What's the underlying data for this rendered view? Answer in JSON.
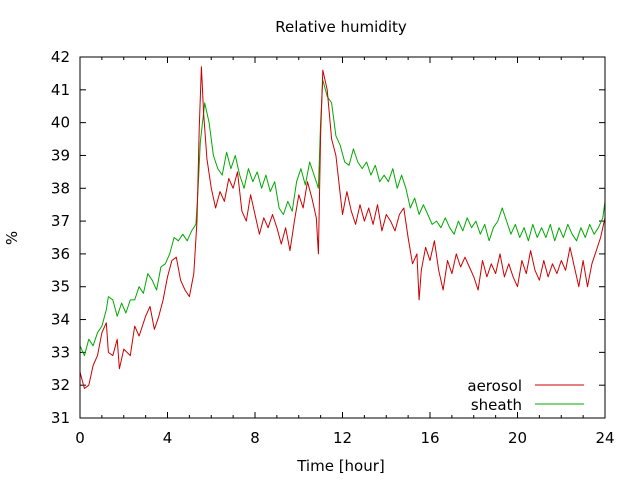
{
  "chart_data": {
    "type": "line",
    "title": "Relative humidity",
    "xlabel": "Time [hour]",
    "ylabel": "%",
    "xlim": [
      0,
      24
    ],
    "ylim": [
      31,
      42
    ],
    "xticks": [
      0,
      4,
      8,
      12,
      16,
      20,
      24
    ],
    "yticks": [
      31,
      32,
      33,
      34,
      35,
      36,
      37,
      38,
      39,
      40,
      41,
      42
    ],
    "grid": false,
    "legend_position": "bottom-right",
    "series": [
      {
        "name": "aerosol",
        "color": "#cc0000",
        "points": [
          [
            0.0,
            32.4
          ],
          [
            0.2,
            31.9
          ],
          [
            0.4,
            32.0
          ],
          [
            0.6,
            32.6
          ],
          [
            0.8,
            32.9
          ],
          [
            1.0,
            33.6
          ],
          [
            1.2,
            33.9
          ],
          [
            1.3,
            33.0
          ],
          [
            1.5,
            32.9
          ],
          [
            1.7,
            33.4
          ],
          [
            1.8,
            32.5
          ],
          [
            2.0,
            33.1
          ],
          [
            2.3,
            32.9
          ],
          [
            2.5,
            33.8
          ],
          [
            2.7,
            33.5
          ],
          [
            3.0,
            34.1
          ],
          [
            3.2,
            34.4
          ],
          [
            3.4,
            33.7
          ],
          [
            3.6,
            34.1
          ],
          [
            3.8,
            34.6
          ],
          [
            4.0,
            35.3
          ],
          [
            4.2,
            35.8
          ],
          [
            4.4,
            35.9
          ],
          [
            4.6,
            35.2
          ],
          [
            4.8,
            34.9
          ],
          [
            5.0,
            34.7
          ],
          [
            5.2,
            35.4
          ],
          [
            5.35,
            37.0
          ],
          [
            5.45,
            39.8
          ],
          [
            5.55,
            41.7
          ],
          [
            5.65,
            40.3
          ],
          [
            5.8,
            38.9
          ],
          [
            6.0,
            38.0
          ],
          [
            6.2,
            37.4
          ],
          [
            6.4,
            37.9
          ],
          [
            6.6,
            37.6
          ],
          [
            6.8,
            38.3
          ],
          [
            7.0,
            38.0
          ],
          [
            7.2,
            38.5
          ],
          [
            7.4,
            37.3
          ],
          [
            7.6,
            37.0
          ],
          [
            7.8,
            37.8
          ],
          [
            8.0,
            37.2
          ],
          [
            8.2,
            36.6
          ],
          [
            8.4,
            37.1
          ],
          [
            8.6,
            36.8
          ],
          [
            8.8,
            37.2
          ],
          [
            9.0,
            36.8
          ],
          [
            9.2,
            36.3
          ],
          [
            9.4,
            36.8
          ],
          [
            9.6,
            36.1
          ],
          [
            9.8,
            37.0
          ],
          [
            10.0,
            37.8
          ],
          [
            10.2,
            37.4
          ],
          [
            10.4,
            38.2
          ],
          [
            10.6,
            37.7
          ],
          [
            10.8,
            37.1
          ],
          [
            10.9,
            36.0
          ],
          [
            11.0,
            39.6
          ],
          [
            11.1,
            41.6
          ],
          [
            11.3,
            41.0
          ],
          [
            11.5,
            39.5
          ],
          [
            11.7,
            39.0
          ],
          [
            11.9,
            37.8
          ],
          [
            12.0,
            37.2
          ],
          [
            12.2,
            37.9
          ],
          [
            12.4,
            37.3
          ],
          [
            12.6,
            36.9
          ],
          [
            12.8,
            37.5
          ],
          [
            13.0,
            37.0
          ],
          [
            13.2,
            37.4
          ],
          [
            13.4,
            36.9
          ],
          [
            13.6,
            37.5
          ],
          [
            13.8,
            36.7
          ],
          [
            14.0,
            37.2
          ],
          [
            14.2,
            37.0
          ],
          [
            14.4,
            36.7
          ],
          [
            14.6,
            37.2
          ],
          [
            14.8,
            37.4
          ],
          [
            15.0,
            36.5
          ],
          [
            15.2,
            35.7
          ],
          [
            15.4,
            36.0
          ],
          [
            15.5,
            34.6
          ],
          [
            15.6,
            35.5
          ],
          [
            15.8,
            36.2
          ],
          [
            16.0,
            35.8
          ],
          [
            16.2,
            36.4
          ],
          [
            16.4,
            35.5
          ],
          [
            16.6,
            34.9
          ],
          [
            16.8,
            35.8
          ],
          [
            17.0,
            35.4
          ],
          [
            17.2,
            36.0
          ],
          [
            17.4,
            35.6
          ],
          [
            17.6,
            35.9
          ],
          [
            17.8,
            35.6
          ],
          [
            18.0,
            35.3
          ],
          [
            18.2,
            34.9
          ],
          [
            18.4,
            35.8
          ],
          [
            18.6,
            35.3
          ],
          [
            18.8,
            35.7
          ],
          [
            19.0,
            35.4
          ],
          [
            19.2,
            36.0
          ],
          [
            19.4,
            35.3
          ],
          [
            19.6,
            35.7
          ],
          [
            19.8,
            35.3
          ],
          [
            20.0,
            35.0
          ],
          [
            20.2,
            35.8
          ],
          [
            20.4,
            35.4
          ],
          [
            20.6,
            36.1
          ],
          [
            20.8,
            35.5
          ],
          [
            21.0,
            35.2
          ],
          [
            21.2,
            35.8
          ],
          [
            21.4,
            35.3
          ],
          [
            21.6,
            35.7
          ],
          [
            21.8,
            35.4
          ],
          [
            22.0,
            35.8
          ],
          [
            22.2,
            35.5
          ],
          [
            22.4,
            36.2
          ],
          [
            22.6,
            35.6
          ],
          [
            22.8,
            35.0
          ],
          [
            23.0,
            35.8
          ],
          [
            23.2,
            35.0
          ],
          [
            23.4,
            35.7
          ],
          [
            23.6,
            36.1
          ],
          [
            23.8,
            36.5
          ],
          [
            24.0,
            37.1
          ]
        ]
      },
      {
        "name": "sheath",
        "color": "#00aa00",
        "points": [
          [
            0.0,
            33.2
          ],
          [
            0.2,
            32.9
          ],
          [
            0.4,
            33.4
          ],
          [
            0.6,
            33.2
          ],
          [
            0.8,
            33.6
          ],
          [
            1.0,
            33.8
          ],
          [
            1.2,
            34.3
          ],
          [
            1.3,
            34.7
          ],
          [
            1.5,
            34.6
          ],
          [
            1.7,
            34.1
          ],
          [
            1.9,
            34.5
          ],
          [
            2.1,
            34.2
          ],
          [
            2.3,
            34.6
          ],
          [
            2.5,
            34.6
          ],
          [
            2.7,
            35.0
          ],
          [
            2.9,
            34.8
          ],
          [
            3.1,
            35.4
          ],
          [
            3.3,
            35.2
          ],
          [
            3.5,
            34.9
          ],
          [
            3.7,
            35.6
          ],
          [
            3.9,
            35.7
          ],
          [
            4.1,
            36.0
          ],
          [
            4.3,
            36.5
          ],
          [
            4.5,
            36.4
          ],
          [
            4.7,
            36.6
          ],
          [
            4.9,
            36.4
          ],
          [
            5.1,
            36.7
          ],
          [
            5.3,
            36.9
          ],
          [
            5.4,
            38.0
          ],
          [
            5.5,
            39.4
          ],
          [
            5.6,
            40.0
          ],
          [
            5.7,
            40.6
          ],
          [
            5.9,
            40.0
          ],
          [
            6.1,
            39.0
          ],
          [
            6.3,
            38.6
          ],
          [
            6.5,
            38.4
          ],
          [
            6.7,
            39.1
          ],
          [
            6.9,
            38.6
          ],
          [
            7.1,
            39.0
          ],
          [
            7.3,
            38.4
          ],
          [
            7.5,
            38.0
          ],
          [
            7.7,
            38.6
          ],
          [
            7.9,
            38.2
          ],
          [
            8.1,
            38.5
          ],
          [
            8.3,
            38.0
          ],
          [
            8.5,
            38.4
          ],
          [
            8.7,
            37.9
          ],
          [
            8.9,
            38.2
          ],
          [
            9.1,
            37.4
          ],
          [
            9.3,
            37.2
          ],
          [
            9.5,
            37.6
          ],
          [
            9.7,
            37.3
          ],
          [
            9.9,
            38.2
          ],
          [
            10.1,
            38.6
          ],
          [
            10.3,
            38.1
          ],
          [
            10.5,
            38.8
          ],
          [
            10.7,
            38.4
          ],
          [
            10.9,
            38.0
          ],
          [
            11.0,
            40.0
          ],
          [
            11.1,
            41.3
          ],
          [
            11.3,
            40.8
          ],
          [
            11.5,
            40.6
          ],
          [
            11.7,
            39.6
          ],
          [
            11.9,
            39.3
          ],
          [
            12.1,
            38.8
          ],
          [
            12.3,
            38.7
          ],
          [
            12.5,
            39.2
          ],
          [
            12.7,
            38.8
          ],
          [
            12.9,
            38.6
          ],
          [
            13.1,
            38.8
          ],
          [
            13.3,
            38.4
          ],
          [
            13.5,
            38.7
          ],
          [
            13.7,
            38.2
          ],
          [
            13.9,
            38.4
          ],
          [
            14.1,
            38.2
          ],
          [
            14.3,
            38.6
          ],
          [
            14.5,
            38.0
          ],
          [
            14.7,
            38.4
          ],
          [
            14.9,
            38.0
          ],
          [
            15.1,
            37.4
          ],
          [
            15.3,
            37.7
          ],
          [
            15.5,
            37.2
          ],
          [
            15.7,
            37.5
          ],
          [
            15.9,
            37.2
          ],
          [
            16.1,
            36.9
          ],
          [
            16.3,
            37.0
          ],
          [
            16.5,
            36.8
          ],
          [
            16.7,
            37.1
          ],
          [
            16.9,
            36.8
          ],
          [
            17.1,
            36.6
          ],
          [
            17.3,
            37.0
          ],
          [
            17.5,
            36.7
          ],
          [
            17.7,
            37.1
          ],
          [
            17.9,
            36.8
          ],
          [
            18.1,
            37.0
          ],
          [
            18.3,
            36.6
          ],
          [
            18.5,
            36.9
          ],
          [
            18.7,
            36.4
          ],
          [
            18.9,
            36.8
          ],
          [
            19.1,
            37.0
          ],
          [
            19.3,
            37.4
          ],
          [
            19.5,
            37.0
          ],
          [
            19.7,
            36.6
          ],
          [
            19.9,
            36.9
          ],
          [
            20.1,
            36.5
          ],
          [
            20.3,
            36.8
          ],
          [
            20.5,
            36.4
          ],
          [
            20.7,
            36.9
          ],
          [
            20.9,
            36.5
          ],
          [
            21.1,
            36.8
          ],
          [
            21.3,
            36.5
          ],
          [
            21.5,
            36.9
          ],
          [
            21.7,
            36.4
          ],
          [
            21.9,
            36.8
          ],
          [
            22.1,
            36.5
          ],
          [
            22.3,
            36.9
          ],
          [
            22.5,
            36.6
          ],
          [
            22.7,
            36.4
          ],
          [
            22.9,
            36.8
          ],
          [
            23.1,
            36.5
          ],
          [
            23.3,
            36.9
          ],
          [
            23.5,
            36.6
          ],
          [
            23.7,
            36.8
          ],
          [
            23.9,
            37.1
          ],
          [
            24.0,
            37.6
          ]
        ]
      }
    ]
  }
}
